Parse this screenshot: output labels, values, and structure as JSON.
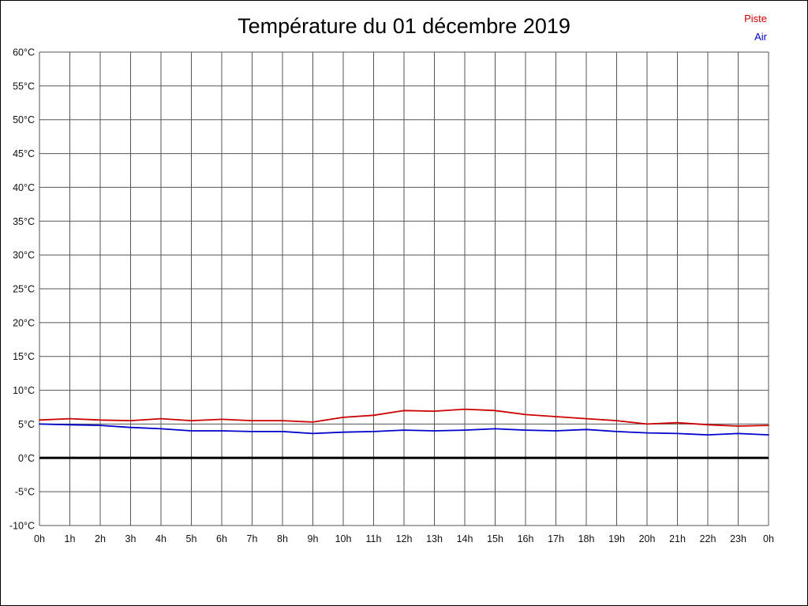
{
  "chart_data": {
    "type": "line",
    "title": "Température du 01 décembre 2019",
    "xlabel": "",
    "ylabel": "",
    "ylim": [
      -10,
      60
    ],
    "y_tick_step": 5,
    "y_ticks": [
      "60°C",
      "55°C",
      "50°C",
      "45°C",
      "40°C",
      "35°C",
      "30°C",
      "25°C",
      "20°C",
      "15°C",
      "10°C",
      "5°C",
      "0°C",
      "-5°C",
      "-10°C"
    ],
    "x_ticks": [
      "0h",
      "1h",
      "2h",
      "3h",
      "4h",
      "5h",
      "6h",
      "7h",
      "8h",
      "9h",
      "10h",
      "11h",
      "12h",
      "13h",
      "14h",
      "15h",
      "16h",
      "17h",
      "18h",
      "19h",
      "20h",
      "21h",
      "22h",
      "23h",
      "0h"
    ],
    "grid": true,
    "legend_position": "top-right",
    "zero_line": {
      "value": 0,
      "color": "#000000",
      "width": 3
    },
    "series": [
      {
        "name": "Piste",
        "color": "#cc0000",
        "values": [
          5.6,
          5.8,
          5.6,
          5.5,
          5.8,
          5.5,
          5.7,
          5.5,
          5.5,
          5.3,
          6.0,
          6.3,
          7.0,
          6.9,
          7.2,
          7.0,
          6.4,
          6.1,
          5.8,
          5.5,
          5.0,
          5.2,
          4.9,
          4.7,
          4.8
        ]
      },
      {
        "name": "Air",
        "color": "#0000cc",
        "values": [
          5.0,
          4.9,
          4.8,
          4.5,
          4.3,
          4.0,
          4.0,
          3.9,
          3.9,
          3.6,
          3.8,
          3.9,
          4.1,
          4.0,
          4.1,
          4.3,
          4.1,
          4.0,
          4.2,
          3.9,
          3.7,
          3.6,
          3.4,
          3.6,
          3.4
        ]
      }
    ]
  }
}
